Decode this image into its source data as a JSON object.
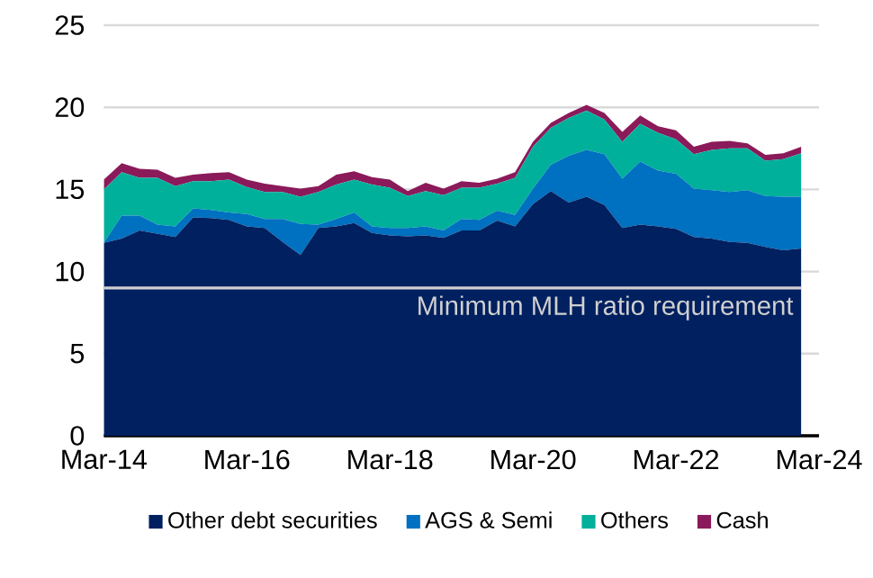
{
  "chart_data": {
    "type": "area",
    "stacked": true,
    "x": [
      "2014-03",
      "2014-06",
      "2014-09",
      "2014-12",
      "2015-03",
      "2015-06",
      "2015-09",
      "2015-12",
      "2016-03",
      "2016-06",
      "2016-09",
      "2016-12",
      "2017-03",
      "2017-06",
      "2017-09",
      "2017-12",
      "2018-03",
      "2018-06",
      "2018-09",
      "2018-12",
      "2019-03",
      "2019-06",
      "2019-09",
      "2019-12",
      "2020-03",
      "2020-06",
      "2020-09",
      "2020-12",
      "2021-03",
      "2021-06",
      "2021-09",
      "2021-12",
      "2022-03",
      "2022-06",
      "2022-09",
      "2022-12",
      "2023-03",
      "2023-06",
      "2023-09",
      "2023-12"
    ],
    "series": [
      {
        "name": "Other debt securities",
        "color": "#002060",
        "values": [
          11.75,
          12.0,
          12.5,
          12.3,
          12.1,
          13.3,
          13.25,
          13.15,
          12.75,
          12.65,
          11.8,
          11.0,
          12.65,
          12.75,
          12.95,
          12.35,
          12.2,
          12.15,
          12.2,
          12.05,
          12.5,
          12.5,
          13.1,
          12.75,
          14.1,
          14.9,
          14.2,
          14.55,
          14.05,
          12.65,
          12.85,
          12.75,
          12.6,
          12.1,
          12.0,
          11.8,
          11.75,
          11.5,
          11.3,
          11.4
        ]
      },
      {
        "name": "AGS & Semi",
        "color": "#0070c0",
        "values": [
          0,
          1.4,
          0.9,
          0.55,
          0.65,
          0.55,
          0.5,
          0.45,
          0.75,
          0.55,
          1.4,
          1.9,
          0.2,
          0.45,
          0.65,
          0.4,
          0.45,
          0.5,
          0.55,
          0.45,
          0.7,
          0.65,
          0.6,
          0.7,
          0.95,
          1.6,
          2.85,
          2.85,
          3.1,
          3.0,
          3.85,
          3.4,
          3.35,
          2.95,
          2.95,
          3.05,
          3.2,
          3.1,
          3.25,
          3.15
        ]
      },
      {
        "name": "Others",
        "color": "#00b09b",
        "values": [
          3.25,
          2.65,
          2.3,
          2.85,
          2.45,
          1.65,
          1.75,
          2.0,
          1.65,
          1.65,
          1.65,
          1.65,
          2.0,
          2.1,
          2.0,
          2.55,
          2.45,
          1.95,
          2.15,
          2.15,
          1.9,
          1.95,
          1.65,
          2.25,
          2.55,
          2.25,
          2.3,
          2.4,
          2.1,
          2.25,
          2.3,
          2.3,
          2.1,
          2.1,
          2.45,
          2.65,
          2.55,
          2.15,
          2.3,
          2.65
        ]
      },
      {
        "name": "Cash",
        "color": "#8b1a5a",
        "values": [
          0.6,
          0.55,
          0.55,
          0.5,
          0.5,
          0.4,
          0.5,
          0.45,
          0.45,
          0.5,
          0.35,
          0.5,
          0.35,
          0.6,
          0.5,
          0.45,
          0.5,
          0.3,
          0.5,
          0.4,
          0.4,
          0.3,
          0.3,
          0.35,
          0.3,
          0.3,
          0.3,
          0.35,
          0.4,
          0.6,
          0.5,
          0.4,
          0.55,
          0.45,
          0.5,
          0.45,
          0.3,
          0.35,
          0.35,
          0.4
        ]
      }
    ],
    "xlim": [
      "2014-03",
      "2024-03"
    ],
    "xticks": [
      {
        "value": "2014-03",
        "label": "Mar-14"
      },
      {
        "value": "2016-03",
        "label": "Mar-16"
      },
      {
        "value": "2018-03",
        "label": "Mar-18"
      },
      {
        "value": "2020-03",
        "label": "Mar-20"
      },
      {
        "value": "2022-03",
        "label": "Mar-22"
      },
      {
        "value": "2024-03",
        "label": "Mar-24"
      }
    ],
    "ylim": [
      0,
      25
    ],
    "yticks": [
      0,
      5,
      10,
      15,
      20,
      25
    ],
    "grid": "y",
    "legend": "bottom",
    "ref_lines": [
      {
        "axis": "y",
        "value": 9,
        "label": "Minimum MLH ratio requirement",
        "color": "#d0d0d0"
      }
    ]
  }
}
